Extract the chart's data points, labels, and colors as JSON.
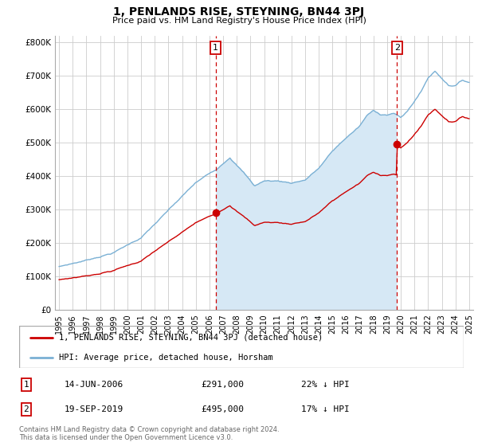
{
  "title": "1, PENLANDS RISE, STEYNING, BN44 3PJ",
  "subtitle": "Price paid vs. HM Land Registry's House Price Index (HPI)",
  "hpi_label": "HPI: Average price, detached house, Horsham",
  "house_label": "1, PENLANDS RISE, STEYNING, BN44 3PJ (detached house)",
  "annotation1": {
    "num": "1",
    "date": "14-JUN-2006",
    "price": "£291,000",
    "pct": "22% ↓ HPI",
    "year": 2006.45
  },
  "annotation2": {
    "num": "2",
    "date": "19-SEP-2019",
    "price": "£495,000",
    "pct": "17% ↓ HPI",
    "year": 2019.72
  },
  "house_color": "#cc0000",
  "hpi_color": "#7ab0d4",
  "fill_color": "#d6e8f5",
  "annotation_color": "#cc0000",
  "background_color": "#ffffff",
  "grid_color": "#cccccc",
  "ylim": [
    0,
    820000
  ],
  "xlim": [
    1994.7,
    2025.3
  ],
  "yticks": [
    0,
    100000,
    200000,
    300000,
    400000,
    500000,
    600000,
    700000,
    800000
  ],
  "ytick_labels": [
    "£0",
    "£100K",
    "£200K",
    "£300K",
    "£400K",
    "£500K",
    "£600K",
    "£700K",
    "£800K"
  ],
  "xticks": [
    1995,
    1996,
    1997,
    1998,
    1999,
    2000,
    2001,
    2002,
    2003,
    2004,
    2005,
    2006,
    2007,
    2008,
    2009,
    2010,
    2011,
    2012,
    2013,
    2014,
    2015,
    2016,
    2017,
    2018,
    2019,
    2020,
    2021,
    2022,
    2023,
    2024,
    2025
  ],
  "footer": "Contains HM Land Registry data © Crown copyright and database right 2024.\nThis data is licensed under the Open Government Licence v3.0.",
  "purchase1_year": 2006.45,
  "purchase1_price": 291000,
  "purchase2_year": 2019.72,
  "purchase2_price": 495000
}
